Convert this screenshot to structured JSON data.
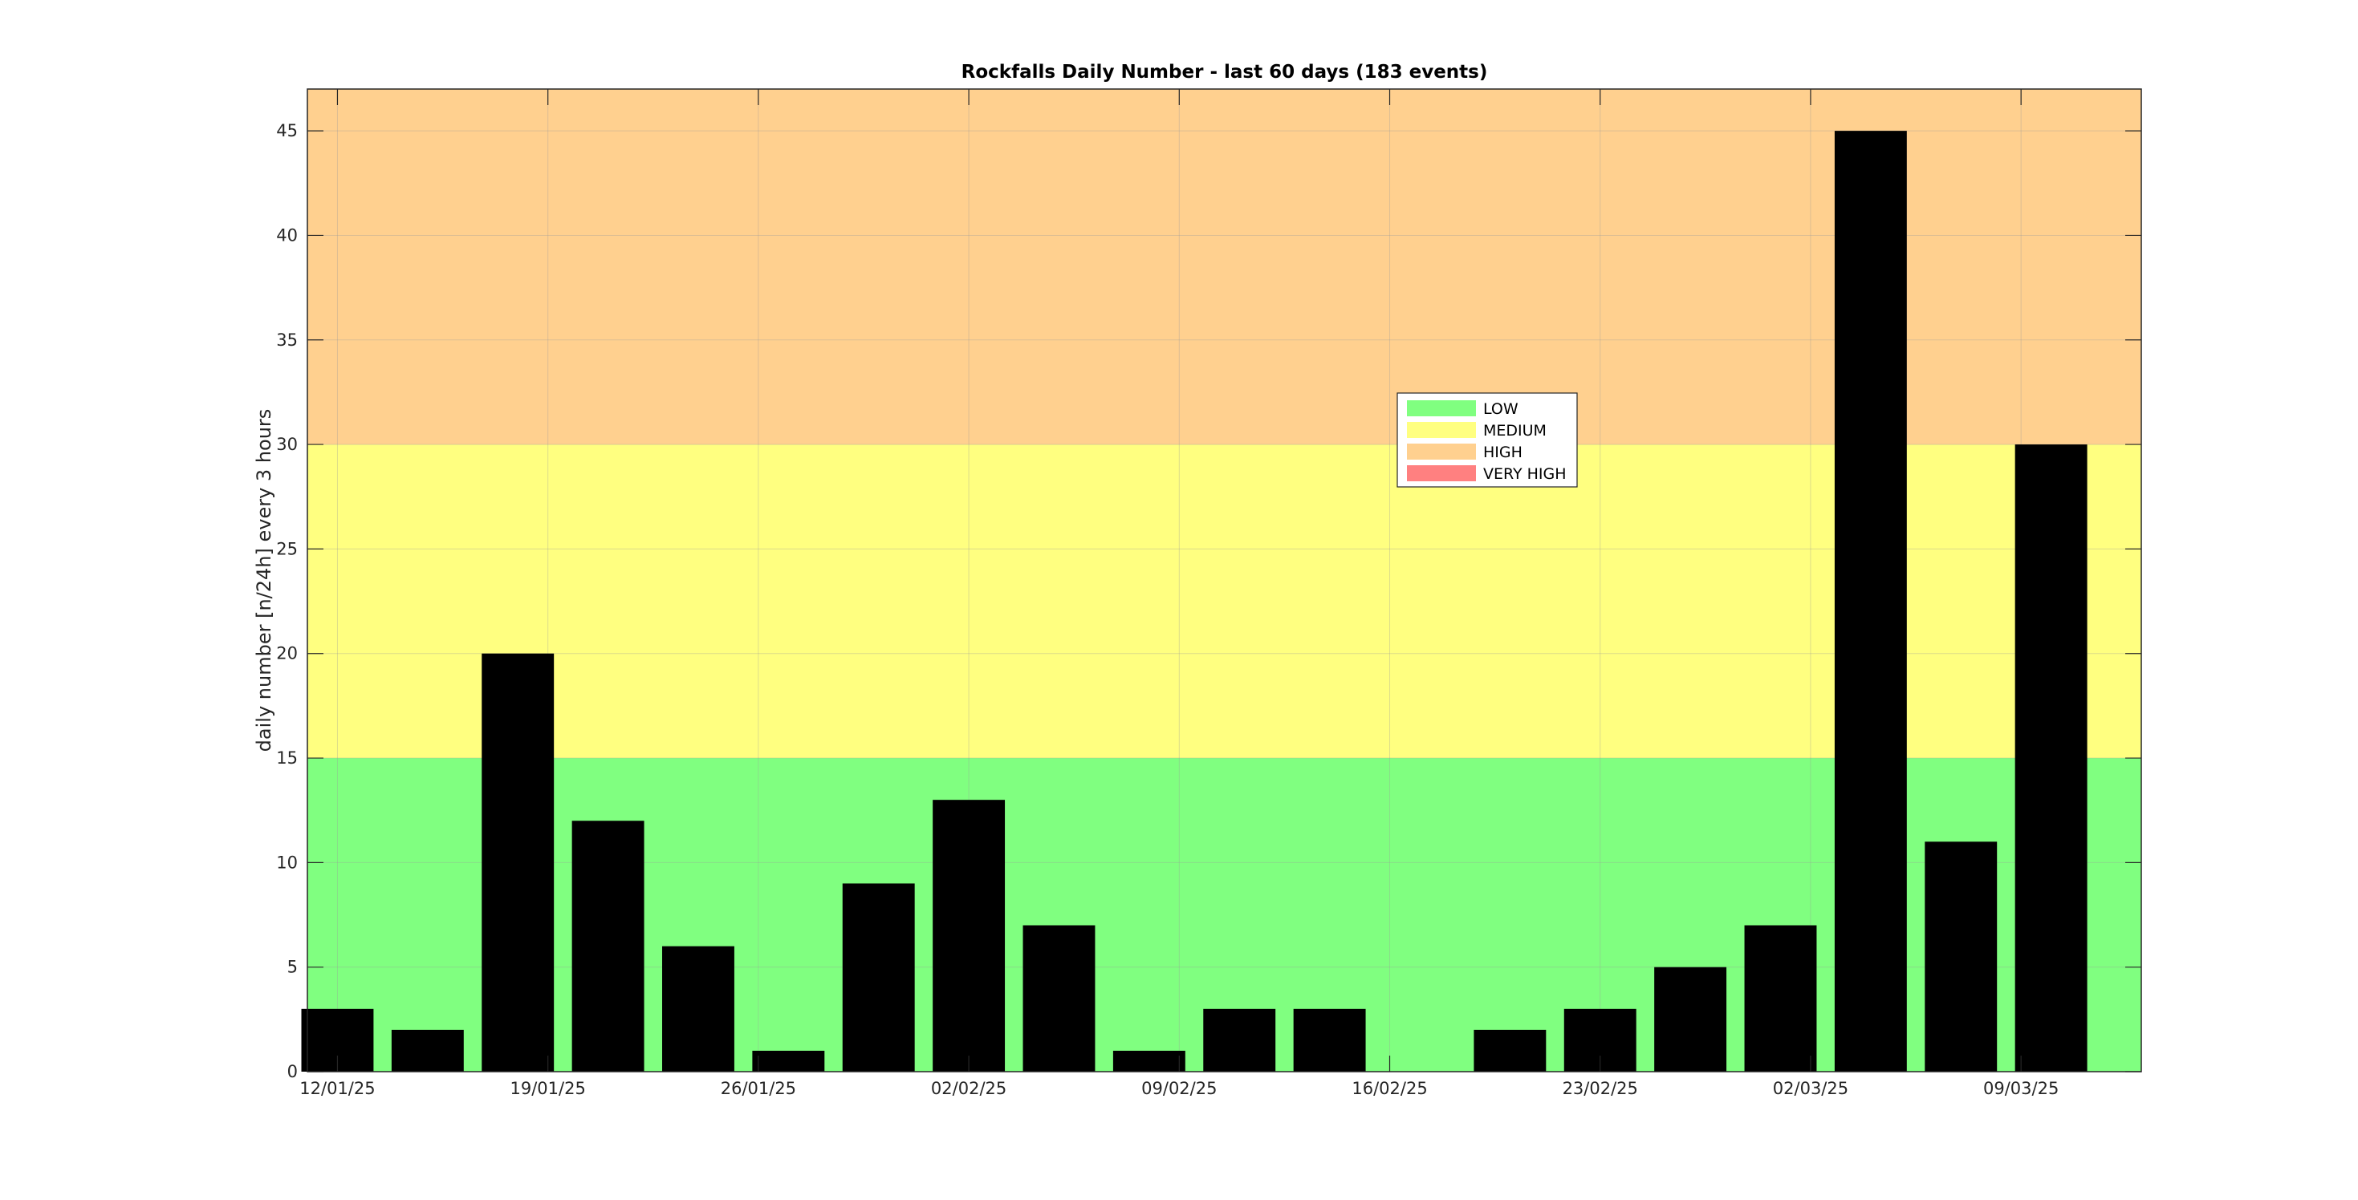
{
  "chart_data": {
    "type": "bar",
    "title": "Rockfalls Daily Number - last 60 days (183 events)",
    "ylabel": "daily number [n/24h] every 3 hours",
    "xlabel": "",
    "x_tick_labels": [
      "12/01/25",
      "19/01/25",
      "26/01/25",
      "02/02/25",
      "09/02/25",
      "16/02/25",
      "23/02/25",
      "02/03/25",
      "09/03/25"
    ],
    "x_tick_dates": [
      "2025-01-12",
      "2025-01-19",
      "2025-01-26",
      "2025-02-02",
      "2025-02-09",
      "2025-02-16",
      "2025-02-23",
      "2025-03-02",
      "2025-03-09"
    ],
    "xlim": [
      "2025-01-11",
      "2025-03-13"
    ],
    "ylim": [
      0,
      47
    ],
    "y_ticks": [
      0,
      5,
      10,
      15,
      20,
      25,
      30,
      35,
      40,
      45
    ],
    "grid": true,
    "bar_color": "#000000",
    "x": [
      "2025-01-12",
      "2025-01-15",
      "2025-01-18",
      "2025-01-21",
      "2025-01-24",
      "2025-01-27",
      "2025-01-30",
      "2025-02-02",
      "2025-02-05",
      "2025-02-08",
      "2025-02-11",
      "2025-02-14",
      "2025-02-17",
      "2025-02-20",
      "2025-02-23",
      "2025-02-26",
      "2025-03-01",
      "2025-03-04",
      "2025-03-07",
      "2025-03-10"
    ],
    "values": [
      3,
      2,
      20,
      12,
      6,
      1,
      9,
      13,
      7,
      1,
      3,
      3,
      0,
      2,
      3,
      5,
      7,
      45,
      11,
      30
    ],
    "bands": [
      {
        "name": "LOW",
        "from": 0,
        "to": 15,
        "color": "#80ff80"
      },
      {
        "name": "MEDIUM",
        "from": 15,
        "to": 30,
        "color": "#ffff80"
      },
      {
        "name": "HIGH",
        "from": 30,
        "to": 47,
        "color": "#ffd08f"
      }
    ],
    "legend": {
      "placement": "inside-center-top",
      "entries": [
        {
          "label": "LOW",
          "color": "#80ff80"
        },
        {
          "label": "MEDIUM",
          "color": "#ffff80"
        },
        {
          "label": "HIGH",
          "color": "#ffd08f"
        },
        {
          "label": "VERY HIGH",
          "color": "#ff8080"
        }
      ]
    }
  }
}
